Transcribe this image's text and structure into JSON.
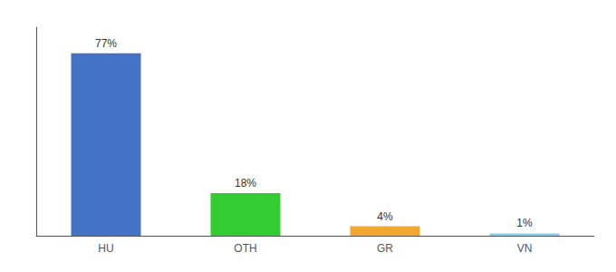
{
  "chart_data": {
    "type": "bar",
    "categories": [
      "HU",
      "OTH",
      "GR",
      "VN"
    ],
    "values": [
      77,
      18,
      4,
      1
    ],
    "value_labels": [
      "77%",
      "18%",
      "4%",
      "1%"
    ],
    "colors": [
      "#4472c4",
      "#33cc33",
      "#f0a830",
      "#87ceeb"
    ],
    "ylim": [
      0,
      88
    ],
    "data_labels": true,
    "tick_labels": "x",
    "grid": false
  }
}
